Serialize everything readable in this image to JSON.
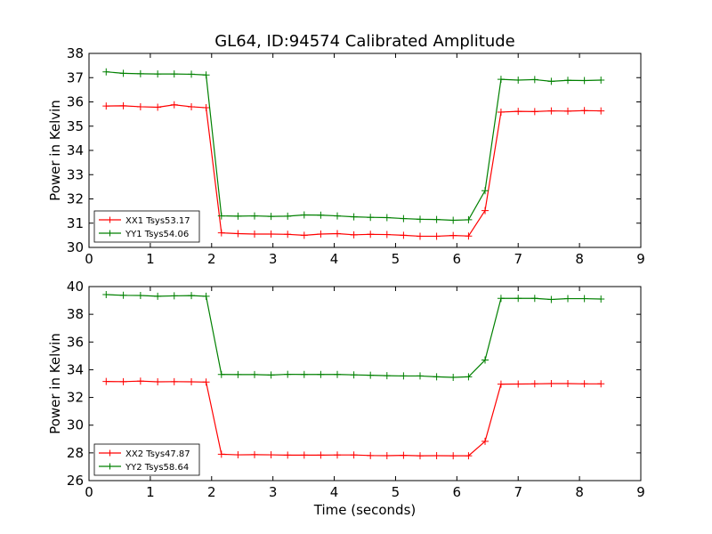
{
  "title": "GL64, ID:94574 Calibrated Amplitude",
  "xlabel": "Time (seconds)",
  "chart_data": [
    {
      "type": "line",
      "title": "GL64, ID:94574 Calibrated Amplitude",
      "xlabel": "",
      "ylabel": "Power in Kelvin",
      "xlim": [
        0,
        9
      ],
      "ylim": [
        30,
        38
      ],
      "xticks": [
        0,
        1,
        2,
        3,
        4,
        5,
        6,
        7,
        8,
        9
      ],
      "yticks": [
        30,
        31,
        32,
        33,
        34,
        35,
        36,
        37,
        38
      ],
      "legend_position": "lower-left",
      "grid": false,
      "series": [
        {
          "name": "XX1 Tsys53.17",
          "color": "#ff0000",
          "x": [
            0.28,
            0.56,
            0.84,
            1.12,
            1.39,
            1.67,
            1.91,
            2.16,
            2.43,
            2.7,
            2.97,
            3.24,
            3.51,
            3.78,
            4.05,
            4.32,
            4.59,
            4.86,
            5.13,
            5.4,
            5.67,
            5.94,
            6.19,
            6.46,
            6.72,
            7.0,
            7.27,
            7.54,
            7.81,
            8.08,
            8.35
          ],
          "y": [
            35.83,
            35.84,
            35.8,
            35.78,
            35.88,
            35.8,
            35.76,
            30.6,
            30.57,
            30.55,
            30.55,
            30.54,
            30.5,
            30.55,
            30.57,
            30.52,
            30.54,
            30.53,
            30.5,
            30.46,
            30.46,
            30.49,
            30.47,
            31.52,
            35.58,
            35.61,
            35.6,
            35.63,
            35.62,
            35.64,
            35.63
          ]
        },
        {
          "name": "YY1 Tsys54.06",
          "color": "#008000",
          "x": [
            0.28,
            0.56,
            0.84,
            1.12,
            1.39,
            1.67,
            1.91,
            2.16,
            2.43,
            2.7,
            2.97,
            3.24,
            3.51,
            3.78,
            4.05,
            4.32,
            4.59,
            4.86,
            5.13,
            5.4,
            5.67,
            5.94,
            6.19,
            6.46,
            6.72,
            7.0,
            7.27,
            7.54,
            7.81,
            8.08,
            8.35
          ],
          "y": [
            37.24,
            37.18,
            37.16,
            37.15,
            37.15,
            37.14,
            37.11,
            31.3,
            31.29,
            31.3,
            31.28,
            31.29,
            31.34,
            31.33,
            31.3,
            31.26,
            31.24,
            31.23,
            31.19,
            31.16,
            31.15,
            31.12,
            31.14,
            32.34,
            36.93,
            36.9,
            36.92,
            36.85,
            36.89,
            36.88,
            36.9
          ]
        }
      ]
    },
    {
      "type": "line",
      "title": "",
      "xlabel": "Time (seconds)",
      "ylabel": "Power in Kelvin",
      "xlim": [
        0,
        9
      ],
      "ylim": [
        26,
        40
      ],
      "xticks": [
        0,
        1,
        2,
        3,
        4,
        5,
        6,
        7,
        8,
        9
      ],
      "yticks": [
        26,
        28,
        30,
        32,
        34,
        36,
        38,
        40
      ],
      "legend_position": "lower-left",
      "grid": false,
      "series": [
        {
          "name": "XX2 Tsys47.87",
          "color": "#ff0000",
          "x": [
            0.28,
            0.56,
            0.84,
            1.12,
            1.39,
            1.67,
            1.91,
            2.16,
            2.43,
            2.7,
            2.97,
            3.24,
            3.51,
            3.78,
            4.05,
            4.32,
            4.59,
            4.86,
            5.13,
            5.4,
            5.67,
            5.94,
            6.19,
            6.46,
            6.72,
            7.0,
            7.27,
            7.54,
            7.81,
            8.08,
            8.35
          ],
          "y": [
            33.15,
            33.14,
            33.18,
            33.13,
            33.14,
            33.13,
            33.11,
            27.9,
            27.86,
            27.87,
            27.86,
            27.84,
            27.84,
            27.84,
            27.85,
            27.85,
            27.81,
            27.8,
            27.82,
            27.79,
            27.8,
            27.79,
            27.79,
            28.83,
            32.96,
            32.97,
            32.98,
            33.0,
            33.0,
            32.98,
            32.98
          ]
        },
        {
          "name": "YY2 Tsys58.64",
          "color": "#008000",
          "x": [
            0.28,
            0.56,
            0.84,
            1.12,
            1.39,
            1.67,
            1.91,
            2.16,
            2.43,
            2.7,
            2.97,
            3.24,
            3.51,
            3.78,
            4.05,
            4.32,
            4.59,
            4.86,
            5.13,
            5.4,
            5.67,
            5.94,
            6.19,
            6.46,
            6.72,
            7.0,
            7.27,
            7.54,
            7.81,
            8.08,
            8.35
          ],
          "y": [
            39.42,
            39.37,
            39.36,
            39.3,
            39.33,
            39.35,
            39.3,
            33.66,
            33.65,
            33.65,
            33.62,
            33.67,
            33.66,
            33.66,
            33.66,
            33.63,
            33.6,
            33.57,
            33.55,
            33.55,
            33.49,
            33.45,
            33.49,
            34.7,
            39.15,
            39.15,
            39.15,
            39.07,
            39.13,
            39.13,
            39.1
          ]
        }
      ]
    }
  ]
}
